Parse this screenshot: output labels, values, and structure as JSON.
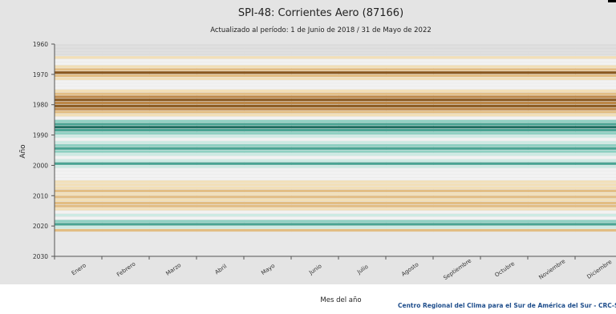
{
  "chart_data": {
    "type": "heatmap",
    "title": "SPI-48: Corrientes Aero (87166)",
    "subtitle": "Actualizado al período: 1 de Junio de 2018 / 31 de Mayo de 2022",
    "xlabel": "Mes del año",
    "ylabel": "Año",
    "footer": "Centro Regional del Clima para el Sur de América del Sur - CRC-S",
    "categories": [
      "Enero",
      "Febrero",
      "Marzo",
      "Abril",
      "Mayo",
      "Junio",
      "Julio",
      "Agosto",
      "Septiembre",
      "Octubre",
      "Noviembre",
      "Diciembre"
    ],
    "y_ticks": [
      1960,
      1970,
      1980,
      1990,
      2000,
      2010,
      2020,
      2030
    ],
    "ylim": [
      1960,
      2030
    ],
    "year_range": [
      1961,
      2022
    ],
    "grid": true,
    "color_scale": {
      "darkbrown": "#8b5a21",
      "brown": "#bc8748",
      "tan": "#e2bd83",
      "lighttan": "#f2dfb7",
      "neutral": "#f2f2f2",
      "lightteal": "#cdeae3",
      "teal": "#8fd0c2",
      "midteal": "#4aa493",
      "darkteal": "#1d6e60",
      "nodata": "#dcdcdc"
    },
    "spi_class_ranges": {
      "darkbrown": "<= -2.0",
      "brown": "-2.0 to -1.5",
      "tan": "-1.5 to -1.0",
      "lighttan": "-1.0 to -0.5",
      "neutral": "-0.5 to 0.5",
      "lightteal": "0.5 to 1.0",
      "teal": "1.0 to 1.5",
      "midteal": "1.5 to 2.0",
      "darkteal": ">= 2.0"
    },
    "year_classes": {
      "1961": "nodata",
      "1962": "nodata",
      "1963": "nodata",
      "1964": "nodata",
      "1965": "lighttan",
      "1966": "neutral",
      "1967": "neutral",
      "1968": "lighttan",
      "1969": "tan",
      "1970": "darkbrown",
      "1971": "tan",
      "1972": "lighttan",
      "1973": "neutral",
      "1974": "neutral",
      "1975": "neutral",
      "1976": "lighttan",
      "1977": "tan",
      "1978": "brown",
      "1979": "darkbrown",
      "1980": "brown",
      "1981": "darkbrown",
      "1982": "brown",
      "1983": "tan",
      "1984": "lighttan",
      "1985": "neutral",
      "1986": "teal",
      "1987": "midteal",
      "1988": "darkteal",
      "1989": "midteal",
      "1990": "teal",
      "1991": "lightteal",
      "1992": "neutral",
      "1993": "lightteal",
      "1994": "teal",
      "1995": "midteal",
      "1996": "teal",
      "1997": "lightteal",
      "1998": "neutral",
      "1999": "lightteal",
      "2000": "midteal",
      "2001": "lightteal",
      "2002": "neutral",
      "2003": "neutral",
      "2004": "neutral",
      "2005": "neutral",
      "2006": "lighttan",
      "2007": "lighttan",
      "2008": "lighttan",
      "2009": "tan",
      "2010": "lighttan",
      "2011": "tan",
      "2012": "lighttan",
      "2013": "tan",
      "2014": "tan",
      "2015": "lighttan",
      "2016": "neutral",
      "2017": "lightteal",
      "2018": "neutral",
      "2019": "teal",
      "2020": "midteal",
      "2021": "lightteal",
      "2022": "tan"
    }
  }
}
